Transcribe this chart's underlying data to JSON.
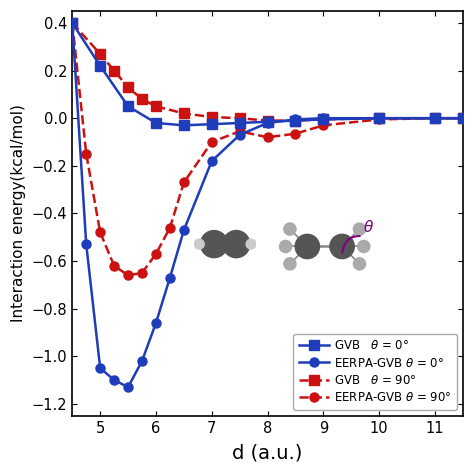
{
  "title": "",
  "xlabel": "d (a.u.)",
  "ylabel": "Interaction energy(kcal/mol)",
  "xlim": [
    4.5,
    11.5
  ],
  "ylim": [
    -1.25,
    0.45
  ],
  "yticks": [
    -1.2,
    -1.0,
    -0.8,
    -0.6,
    -0.4,
    -0.2,
    0.0,
    0.2,
    0.4
  ],
  "xticks": [
    5,
    6,
    7,
    8,
    9,
    10,
    11
  ],
  "GVB_0_x": [
    4.5,
    5.0,
    5.5,
    6.0,
    6.5,
    7.0,
    7.5,
    8.0,
    8.5,
    9.0,
    10.0,
    11.0,
    11.5
  ],
  "GVB_0_y": [
    0.4,
    0.22,
    0.05,
    -0.02,
    -0.03,
    -0.025,
    -0.02,
    -0.015,
    -0.01,
    -0.005,
    0.0,
    0.0,
    0.0
  ],
  "EERPA_0_x": [
    4.5,
    4.75,
    5.0,
    5.25,
    5.5,
    5.75,
    6.0,
    6.25,
    6.5,
    7.0,
    7.5,
    8.0,
    8.5,
    9.0,
    10.0,
    11.0,
    11.5
  ],
  "EERPA_0_y": [
    0.4,
    -0.53,
    -1.05,
    -1.1,
    -1.13,
    -1.02,
    -0.86,
    -0.67,
    -0.47,
    -0.18,
    -0.07,
    -0.02,
    -0.005,
    0.0,
    0.0,
    0.0,
    0.0
  ],
  "GVB_90_x": [
    4.5,
    5.0,
    5.25,
    5.5,
    5.75,
    6.0,
    6.5,
    7.0,
    7.5,
    8.0,
    8.5,
    9.0,
    10.0,
    11.0,
    11.5
  ],
  "GVB_90_y": [
    0.4,
    0.27,
    0.2,
    0.13,
    0.08,
    0.05,
    0.02,
    0.005,
    0.0,
    -0.01,
    -0.01,
    -0.005,
    0.0,
    0.0,
    0.0
  ],
  "EERPA_90_x": [
    4.5,
    4.75,
    5.0,
    5.25,
    5.5,
    5.75,
    6.0,
    6.25,
    6.5,
    7.0,
    7.5,
    8.0,
    8.5,
    9.0,
    10.0,
    11.0,
    11.5
  ],
  "EERPA_90_y": [
    0.4,
    -0.15,
    -0.48,
    -0.62,
    -0.66,
    -0.65,
    -0.57,
    -0.46,
    -0.27,
    -0.1,
    -0.055,
    -0.08,
    -0.065,
    -0.03,
    -0.005,
    0.0,
    0.0
  ],
  "color_blue": "#1f3cba",
  "color_red": "#cc1111",
  "line_width": 1.8,
  "marker_size": 6.5
}
